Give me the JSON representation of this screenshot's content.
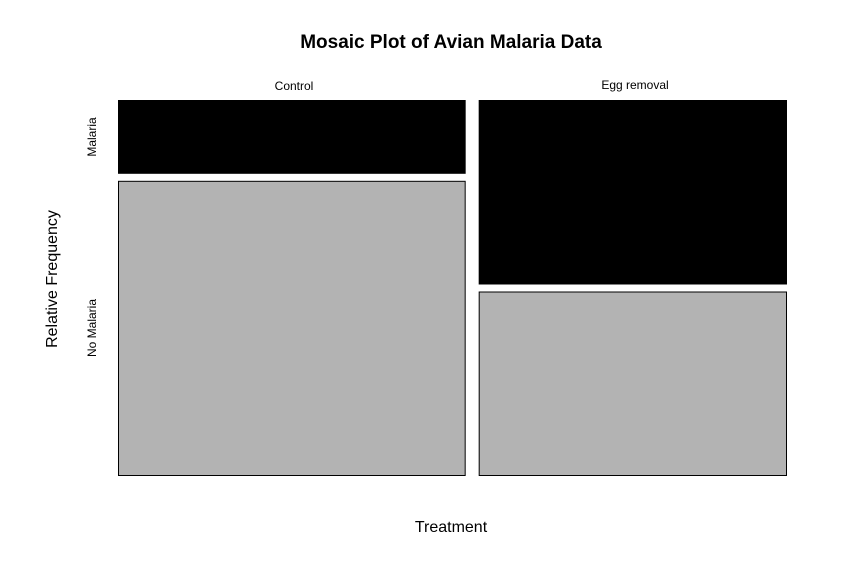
{
  "chart_data": {
    "type": "mosaic",
    "title": "Mosaic Plot of Avian Malaria Data",
    "xlabel": "Treatment",
    "ylabel": "Relative Frequency",
    "categories": [
      "Control",
      "Egg removal"
    ],
    "column_proportions": [
      0.53,
      0.47
    ],
    "series": [
      {
        "name": "Malaria",
        "color": "#000000",
        "values": [
          0.2,
          0.5
        ]
      },
      {
        "name": "No Malaria",
        "color": "#b3b3b3",
        "values": [
          0.8,
          0.5
        ]
      }
    ],
    "row_labels": [
      "Malaria",
      "No Malaria"
    ],
    "grid": false,
    "legend": "none"
  }
}
